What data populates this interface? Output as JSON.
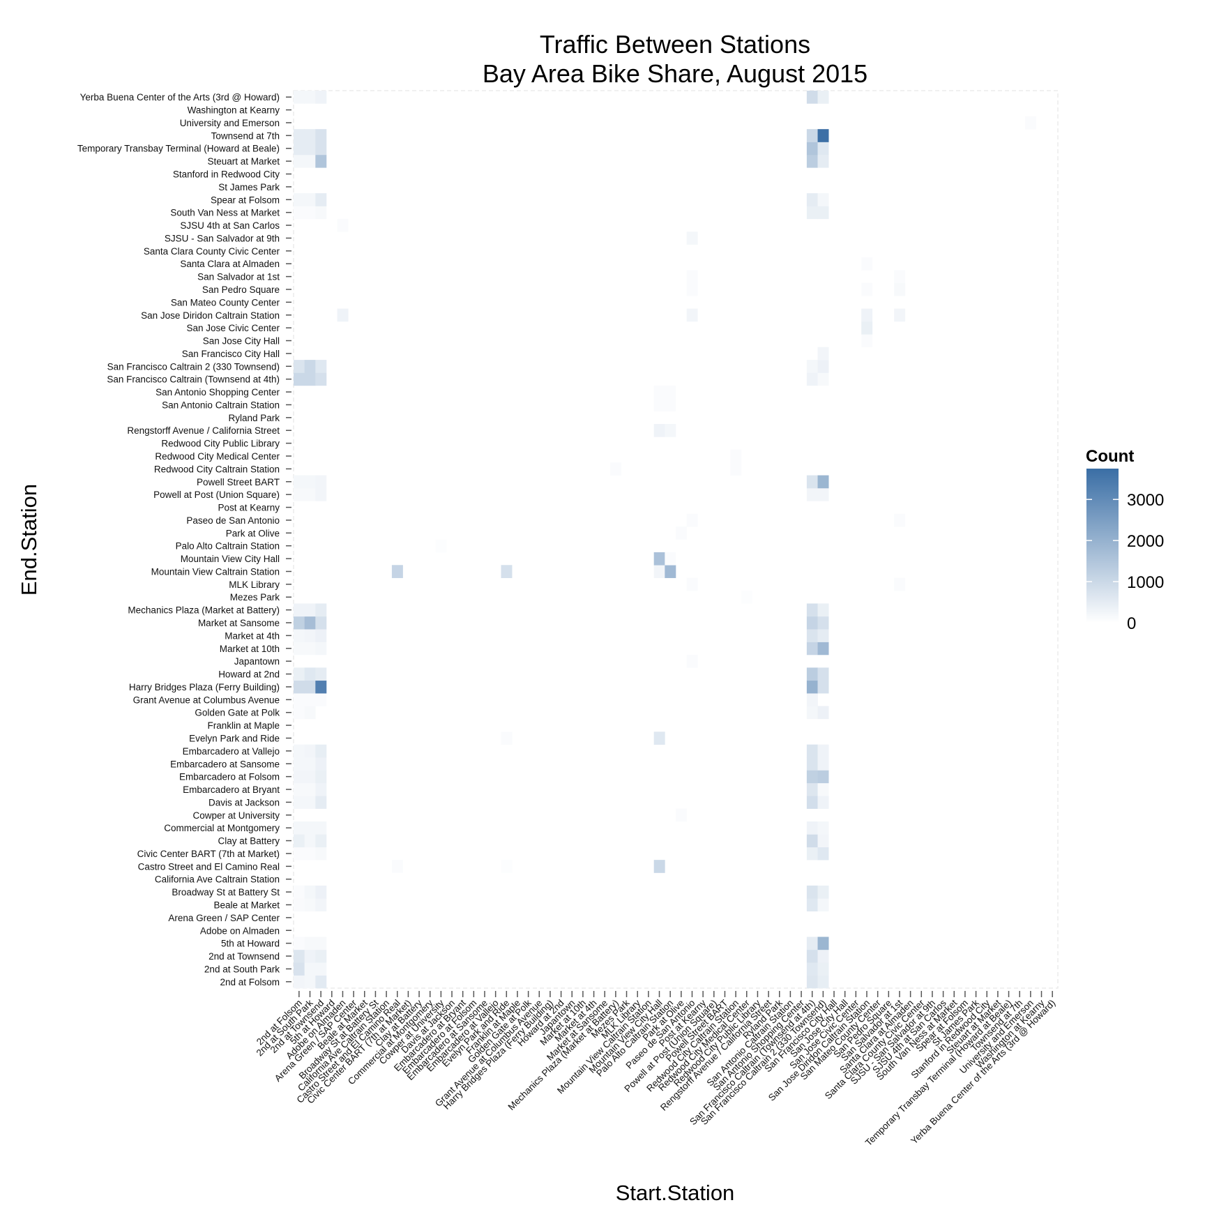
{
  "chart_data": {
    "type": "heatmap",
    "title_line1": "Traffic Between Stations",
    "title_line2": "Bay Area Bike Share, August 2015",
    "xlabel": "Start.Station",
    "ylabel": "End.Station",
    "stations": [
      "2nd at Folsom",
      "2nd at South Park",
      "2nd at Townsend",
      "5th at Howard",
      "Adobe on Almaden",
      "Arena Green / SAP Center",
      "Beale at Market",
      "Broadway St at Battery St",
      "California Ave Caltrain Station",
      "Castro Street and El Camino Real",
      "Civic Center BART (7th at Market)",
      "Clay at Battery",
      "Commercial at Montgomery",
      "Cowper at University",
      "Davis at Jackson",
      "Embarcadero at Bryant",
      "Embarcadero at Folsom",
      "Embarcadero at Sansome",
      "Embarcadero at Vallejo",
      "Evelyn Park and Ride",
      "Franklin at Maple",
      "Golden Gate at Polk",
      "Grant Avenue at Columbus Avenue",
      "Harry Bridges Plaza (Ferry Building)",
      "Howard at 2nd",
      "Japantown",
      "Market at 10th",
      "Market at 4th",
      "Market at Sansome",
      "Mechanics Plaza (Market at Battery)",
      "Mezes Park",
      "MLK Library",
      "Mountain View Caltrain Station",
      "Mountain View City Hall",
      "Palo Alto Caltrain Station",
      "Park at Olive",
      "Paseo de San Antonio",
      "Post at Kearny",
      "Powell at Post (Union Square)",
      "Powell Street BART",
      "Redwood City Caltrain Station",
      "Redwood City Medical Center",
      "Redwood City Public Library",
      "Rengstorff Avenue / California Street",
      "Ryland Park",
      "San Antonio Caltrain Station",
      "San Antonio Shopping Center",
      "San Francisco Caltrain (Townsend at 4th)",
      "San Francisco Caltrain 2 (330 Townsend)",
      "San Francisco City Hall",
      "San Jose City Hall",
      "San Jose Civic Center",
      "San Jose Diridon Caltrain Station",
      "San Mateo County Center",
      "San Pedro Square",
      "San Salvador at 1st",
      "Santa Clara at Almaden",
      "Santa Clara County Civic Center",
      "SJSU - San Salvador at 9th",
      "SJSU 4th at San Carlos",
      "South Van Ness at Market",
      "Spear at Folsom",
      "St James Park",
      "Stanford in Redwood City",
      "Steuart at Market",
      "Temporary Transbay Terminal (Howard at Beale)",
      "Townsend at 7th",
      "University and Emerson",
      "Washington at Kearny",
      "Yerba Buena Center of the Arts (3rd @ Howard)"
    ],
    "cells_note": "each cell: [start_station_index, end_station_index, count]",
    "cells": [
      [
        0,
        0,
        250
      ],
      [
        1,
        0,
        200
      ],
      [
        2,
        0,
        550
      ],
      [
        47,
        0,
        650
      ],
      [
        48,
        0,
        450
      ],
      [
        0,
        1,
        750
      ],
      [
        1,
        1,
        200
      ],
      [
        2,
        1,
        200
      ],
      [
        47,
        1,
        600
      ],
      [
        48,
        1,
        400
      ],
      [
        0,
        2,
        650
      ],
      [
        1,
        2,
        300
      ],
      [
        2,
        2,
        400
      ],
      [
        47,
        2,
        800
      ],
      [
        48,
        2,
        350
      ],
      [
        0,
        3,
        100
      ],
      [
        1,
        3,
        150
      ],
      [
        2,
        3,
        150
      ],
      [
        47,
        3,
        500
      ],
      [
        48,
        3,
        1900
      ],
      [
        0,
        6,
        120
      ],
      [
        1,
        6,
        150
      ],
      [
        2,
        6,
        250
      ],
      [
        47,
        6,
        600
      ],
      [
        48,
        6,
        200
      ],
      [
        0,
        7,
        100
      ],
      [
        1,
        7,
        200
      ],
      [
        2,
        7,
        350
      ],
      [
        47,
        7,
        700
      ],
      [
        48,
        7,
        400
      ],
      [
        9,
        9,
        100
      ],
      [
        19,
        9,
        50
      ],
      [
        33,
        9,
        1000
      ],
      [
        0,
        10,
        100
      ],
      [
        1,
        10,
        100
      ],
      [
        2,
        10,
        150
      ],
      [
        47,
        10,
        400
      ],
      [
        48,
        10,
        600
      ],
      [
        0,
        11,
        400
      ],
      [
        1,
        11,
        200
      ],
      [
        2,
        11,
        400
      ],
      [
        47,
        11,
        900
      ],
      [
        48,
        11,
        250
      ],
      [
        0,
        12,
        200
      ],
      [
        1,
        12,
        200
      ],
      [
        2,
        12,
        200
      ],
      [
        47,
        12,
        300
      ],
      [
        48,
        12,
        200
      ],
      [
        35,
        13,
        100
      ],
      [
        0,
        14,
        200
      ],
      [
        1,
        14,
        200
      ],
      [
        2,
        14,
        500
      ],
      [
        47,
        14,
        850
      ],
      [
        48,
        14,
        300
      ],
      [
        0,
        15,
        150
      ],
      [
        1,
        15,
        150
      ],
      [
        2,
        15,
        300
      ],
      [
        47,
        15,
        650
      ],
      [
        48,
        15,
        150
      ],
      [
        0,
        16,
        250
      ],
      [
        1,
        16,
        250
      ],
      [
        2,
        16,
        400
      ],
      [
        47,
        16,
        1200
      ],
      [
        48,
        16,
        1300
      ],
      [
        0,
        17,
        200
      ],
      [
        1,
        17,
        200
      ],
      [
        2,
        17,
        350
      ],
      [
        47,
        17,
        700
      ],
      [
        48,
        17,
        300
      ],
      [
        0,
        18,
        200
      ],
      [
        1,
        18,
        250
      ],
      [
        2,
        18,
        450
      ],
      [
        47,
        18,
        700
      ],
      [
        48,
        18,
        300
      ],
      [
        19,
        19,
        100
      ],
      [
        33,
        19,
        600
      ],
      [
        0,
        21,
        100
      ],
      [
        1,
        21,
        150
      ],
      [
        47,
        21,
        200
      ],
      [
        48,
        21,
        350
      ],
      [
        0,
        22,
        100
      ],
      [
        1,
        22,
        100
      ],
      [
        2,
        22,
        100
      ],
      [
        47,
        22,
        250
      ],
      [
        0,
        23,
        900
      ],
      [
        1,
        23,
        900
      ],
      [
        2,
        23,
        3300
      ],
      [
        47,
        23,
        2000
      ],
      [
        48,
        23,
        800
      ],
      [
        0,
        24,
        400
      ],
      [
        1,
        24,
        600
      ],
      [
        2,
        24,
        500
      ],
      [
        47,
        24,
        1300
      ],
      [
        48,
        24,
        800
      ],
      [
        36,
        25,
        100
      ],
      [
        0,
        26,
        150
      ],
      [
        1,
        26,
        150
      ],
      [
        2,
        26,
        200
      ],
      [
        47,
        26,
        1100
      ],
      [
        48,
        26,
        1800
      ],
      [
        0,
        27,
        200
      ],
      [
        1,
        27,
        250
      ],
      [
        2,
        27,
        350
      ],
      [
        47,
        27,
        700
      ],
      [
        48,
        27,
        500
      ],
      [
        0,
        28,
        1200
      ],
      [
        1,
        28,
        1700
      ],
      [
        2,
        28,
        800
      ],
      [
        47,
        28,
        1100
      ],
      [
        48,
        28,
        800
      ],
      [
        0,
        29,
        300
      ],
      [
        1,
        29,
        300
      ],
      [
        2,
        29,
        500
      ],
      [
        47,
        29,
        800
      ],
      [
        48,
        29,
        400
      ],
      [
        41,
        30,
        50
      ],
      [
        36,
        31,
        100
      ],
      [
        55,
        31,
        100
      ],
      [
        9,
        32,
        1100
      ],
      [
        19,
        32,
        800
      ],
      [
        33,
        32,
        250
      ],
      [
        34,
        32,
        1800
      ],
      [
        33,
        33,
        1600
      ],
      [
        34,
        33,
        100
      ],
      [
        13,
        34,
        50
      ],
      [
        35,
        35,
        100
      ],
      [
        36,
        36,
        100
      ],
      [
        55,
        36,
        100
      ],
      [
        0,
        38,
        150
      ],
      [
        1,
        38,
        150
      ],
      [
        2,
        38,
        250
      ],
      [
        47,
        38,
        250
      ],
      [
        48,
        38,
        250
      ],
      [
        0,
        39,
        200
      ],
      [
        1,
        39,
        200
      ],
      [
        2,
        39,
        250
      ],
      [
        47,
        39,
        700
      ],
      [
        48,
        39,
        1900
      ],
      [
        29,
        40,
        100
      ],
      [
        40,
        40,
        100
      ],
      [
        40,
        41,
        100
      ],
      [
        33,
        43,
        300
      ],
      [
        34,
        43,
        200
      ],
      [
        33,
        45,
        100
      ],
      [
        34,
        45,
        100
      ],
      [
        33,
        46,
        100
      ],
      [
        34,
        46,
        100
      ],
      [
        0,
        47,
        1000
      ],
      [
        1,
        47,
        1000
      ],
      [
        2,
        47,
        800
      ],
      [
        47,
        47,
        300
      ],
      [
        48,
        47,
        150
      ],
      [
        0,
        48,
        700
      ],
      [
        1,
        48,
        1000
      ],
      [
        2,
        48,
        600
      ],
      [
        47,
        48,
        200
      ],
      [
        48,
        48,
        350
      ],
      [
        48,
        49,
        250
      ],
      [
        52,
        50,
        100
      ],
      [
        52,
        51,
        400
      ],
      [
        4,
        52,
        300
      ],
      [
        36,
        52,
        250
      ],
      [
        52,
        52,
        300
      ],
      [
        55,
        52,
        250
      ],
      [
        36,
        54,
        100
      ],
      [
        52,
        54,
        100
      ],
      [
        55,
        54,
        150
      ],
      [
        36,
        55,
        100
      ],
      [
        55,
        55,
        100
      ],
      [
        52,
        56,
        100
      ],
      [
        36,
        58,
        200
      ],
      [
        4,
        59,
        100
      ],
      [
        0,
        60,
        100
      ],
      [
        1,
        60,
        100
      ],
      [
        2,
        60,
        150
      ],
      [
        47,
        60,
        400
      ],
      [
        48,
        60,
        400
      ],
      [
        0,
        61,
        200
      ],
      [
        1,
        61,
        200
      ],
      [
        2,
        61,
        500
      ],
      [
        47,
        61,
        500
      ],
      [
        48,
        61,
        200
      ],
      [
        0,
        64,
        200
      ],
      [
        1,
        64,
        200
      ],
      [
        2,
        64,
        1500
      ],
      [
        47,
        64,
        1300
      ],
      [
        48,
        64,
        500
      ],
      [
        0,
        65,
        500
      ],
      [
        1,
        65,
        500
      ],
      [
        2,
        65,
        750
      ],
      [
        47,
        65,
        1500
      ],
      [
        48,
        65,
        600
      ],
      [
        0,
        66,
        500
      ],
      [
        1,
        66,
        500
      ],
      [
        2,
        66,
        750
      ],
      [
        47,
        66,
        1000
      ],
      [
        48,
        66,
        3700
      ],
      [
        67,
        67,
        100
      ],
      [
        0,
        69,
        200
      ],
      [
        1,
        69,
        200
      ],
      [
        2,
        69,
        300
      ],
      [
        47,
        69,
        900
      ],
      [
        48,
        69,
        400
      ]
    ],
    "color_scale": {
      "low": "#ffffff",
      "high": "#3a6ea5",
      "min": 0,
      "max": 3750
    },
    "legend": {
      "title": "Count",
      "ticks": [
        0,
        1000,
        2000,
        3000
      ],
      "tick_labels": [
        "0",
        "1000",
        "2000",
        "3000"
      ],
      "placement": "right"
    },
    "grid": false
  }
}
